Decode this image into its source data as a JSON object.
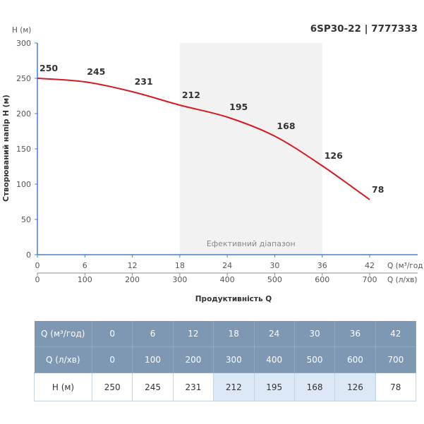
{
  "model": "6SP30-22 | 7777333",
  "chart_data": {
    "type": "line",
    "title": "6SP30-22 | 7777333",
    "ylabel": "Створюваний напір H (м)",
    "yunit": "H (м)",
    "xlabel": "Продуктивність Q",
    "x_primary_unit": "Q (м³/год)",
    "x_secondary_unit": "Q (л/хв)",
    "x_primary_ticks": [
      0,
      6,
      12,
      18,
      24,
      30,
      36,
      42
    ],
    "x_secondary_ticks": [
      0,
      100,
      200,
      300,
      400,
      500,
      600,
      700
    ],
    "y_ticks": [
      0,
      50,
      100,
      150,
      200,
      250,
      300
    ],
    "xlim": [
      0,
      42
    ],
    "ylim": [
      0,
      300
    ],
    "grid": false,
    "efficient_range": {
      "label": "Ефективний діапазон",
      "x_start": 18,
      "x_end": 36
    },
    "series": [
      {
        "color": "#d71920",
        "x": [
          0,
          6,
          12,
          18,
          24,
          30,
          36,
          42
        ],
        "values": [
          250,
          245,
          231,
          212,
          195,
          168,
          126,
          78
        ]
      }
    ]
  },
  "table": {
    "rows": [
      {
        "label": "Q (м³/год)",
        "values": [
          "0",
          "6",
          "12",
          "18",
          "24",
          "30",
          "36",
          "42"
        ]
      },
      {
        "label": "Q (л/хв)",
        "values": [
          "0",
          "100",
          "200",
          "300",
          "400",
          "500",
          "600",
          "700"
        ]
      },
      {
        "label": "H (м)",
        "values": [
          "250",
          "245",
          "231",
          "212",
          "195",
          "168",
          "126",
          "78"
        ]
      }
    ],
    "highlight_columns": [
      3,
      4,
      5,
      6
    ],
    "header_color": "#7e97b2",
    "highlight_color": "#dde8f6"
  }
}
